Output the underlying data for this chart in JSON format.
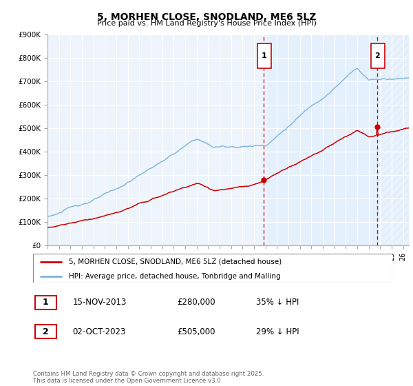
{
  "title": "5, MORHEN CLOSE, SNODLAND, ME6 5LZ",
  "subtitle": "Price paid vs. HM Land Registry's House Price Index (HPI)",
  "ylabel_ticks": [
    "£0",
    "£100K",
    "£200K",
    "£300K",
    "£400K",
    "£500K",
    "£600K",
    "£700K",
    "£800K",
    "£900K"
  ],
  "ylim": [
    0,
    900000
  ],
  "xlim_start": 1995.0,
  "xlim_end": 2026.5,
  "hpi_color": "#7ab4d8",
  "hpi_fill_color": "#ddeeff",
  "price_color": "#cc0000",
  "grid_color": "#cccccc",
  "background_color": "#ffffff",
  "chart_bg": "#eef4fb",
  "marker1_x": 2013.87,
  "marker1_y": 280000,
  "marker2_x": 2023.75,
  "marker2_y": 505000,
  "legend_line1": "5, MORHEN CLOSE, SNODLAND, ME6 5LZ (detached house)",
  "legend_line2": "HPI: Average price, detached house, Tonbridge and Malling",
  "table_row1": [
    "1",
    "15-NOV-2013",
    "£280,000",
    "35% ↓ HPI"
  ],
  "table_row2": [
    "2",
    "02-OCT-2023",
    "£505,000",
    "29% ↓ HPI"
  ],
  "footer": "Contains HM Land Registry data © Crown copyright and database right 2025.\nThis data is licensed under the Open Government Licence v3.0.",
  "dashed_line1_x": 2013.87,
  "dashed_line2_x": 2023.75
}
